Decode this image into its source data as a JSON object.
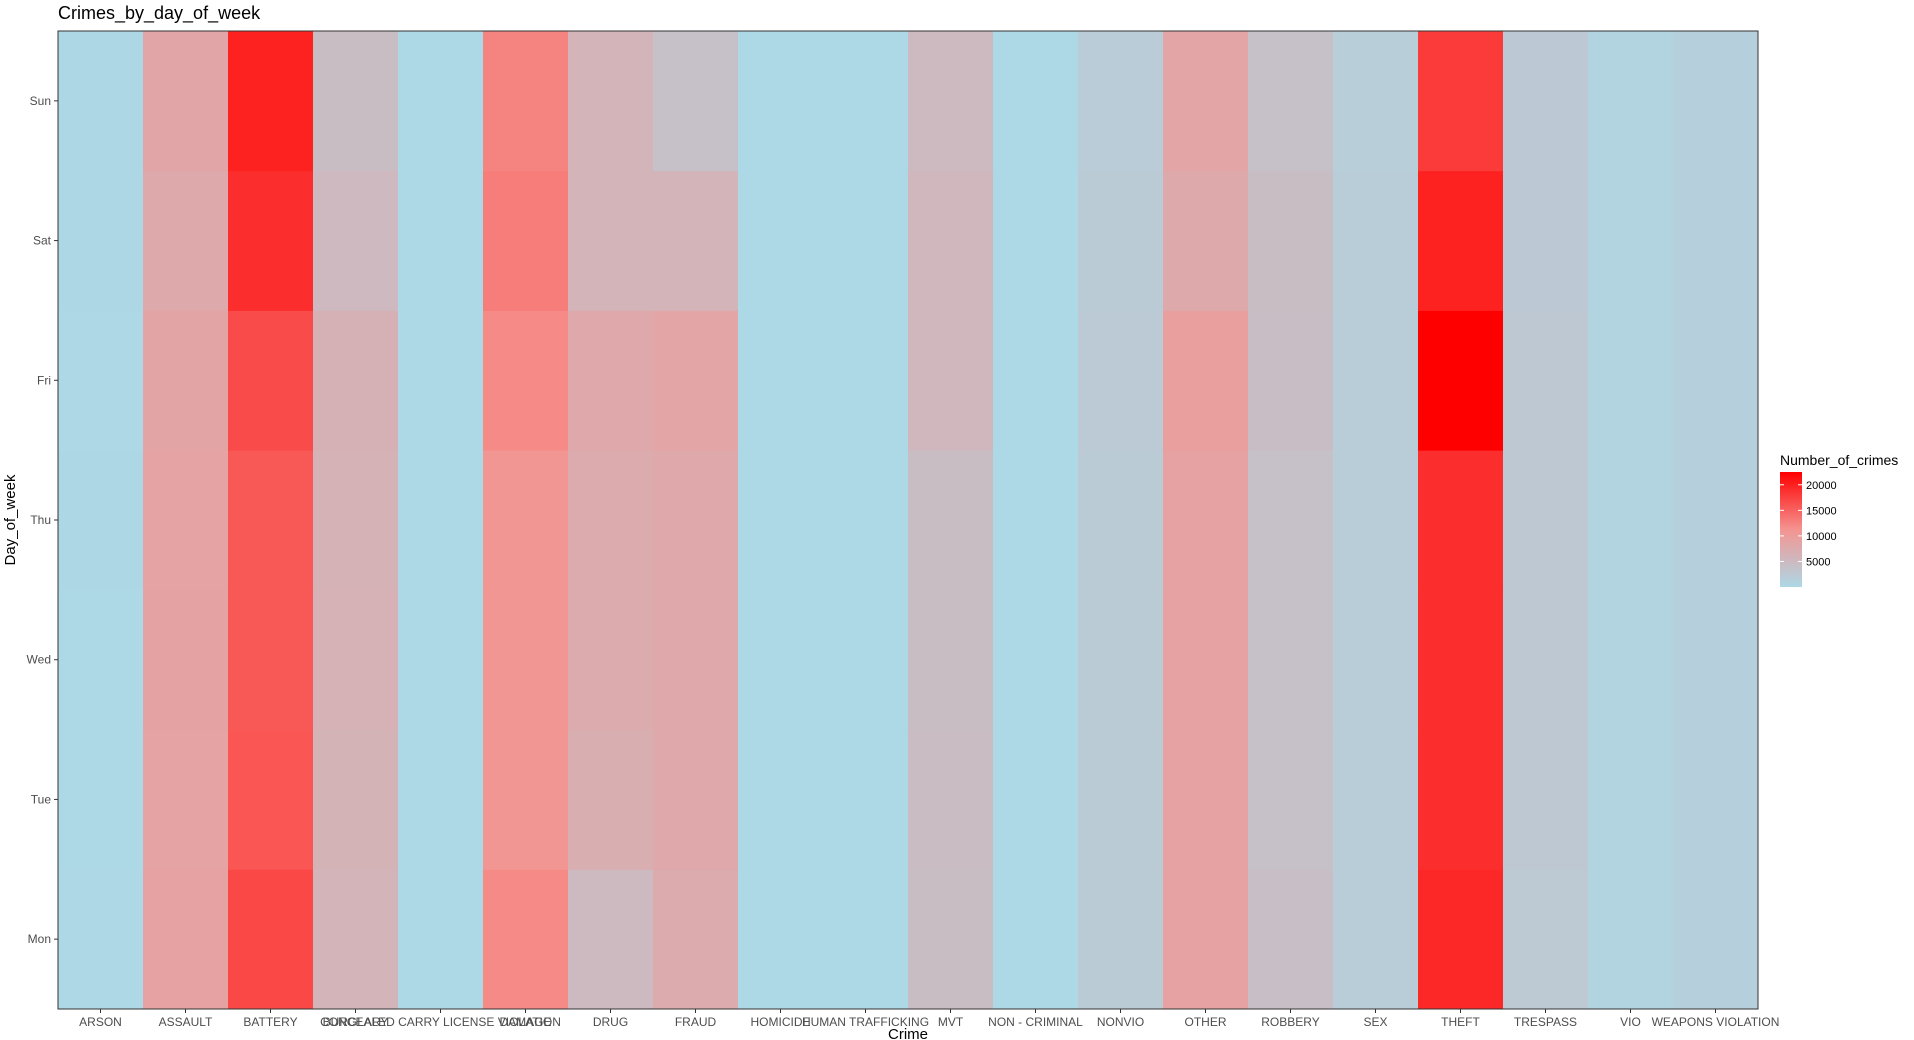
{
  "chart_data": {
    "type": "heatmap",
    "title": "Crimes_by_day_of_week",
    "xlabel": "Crime",
    "ylabel": "Day_of_week",
    "x_categories": [
      "ARSON",
      "ASSAULT",
      "BATTERY",
      "BURGLARY",
      "CONCEALED CARRY LICENSE VIOLATION",
      "DAMAGE",
      "DRUG",
      "FRAUD",
      "HOMICIDE",
      "HUMAN TRAFFICKING",
      "MVT",
      "NON - CRIMINAL",
      "NONVIO",
      "OTHER",
      "ROBBERY",
      "SEX",
      "THEFT",
      "TRESPASS",
      "VIO",
      "WEAPONS VIOLATION"
    ],
    "x_tick_labels": [
      "ARSON",
      "ASSAULT",
      "BATTERY",
      "BURGLARY",
      "CONCEALED CARRY LICENSE VIOLATION",
      "DAMAGE",
      "DRUG",
      "FRAUD",
      "HOMICIDE",
      "HUMAN TRAFFICKING",
      "MVT",
      "NON - CRIMINAL",
      "NONVIO",
      "OTHER",
      "ROBBERY",
      "SEX",
      "THEFT",
      "TRESPASS",
      "VIO",
      "WEAPONS VIOLATION"
    ],
    "y_categories": [
      "Mon",
      "Tue",
      "Wed",
      "Thu",
      "Fri",
      "Sat",
      "Sun"
    ],
    "values": [
      [
        80,
        9000,
        17000,
        6000,
        20,
        12000,
        5000,
        7500,
        60,
        5,
        4500,
        30,
        2200,
        9000,
        4200,
        1800,
        19500,
        2500,
        800,
        1300
      ],
      [
        75,
        8800,
        16000,
        6200,
        25,
        11000,
        7000,
        8000,
        55,
        5,
        4600,
        35,
        2100,
        9000,
        4000,
        1800,
        19000,
        2600,
        800,
        1300
      ],
      [
        70,
        8900,
        15800,
        6500,
        20,
        11000,
        7500,
        8000,
        60,
        5,
        4500,
        30,
        2200,
        9000,
        4000,
        1800,
        19000,
        2700,
        800,
        1300
      ],
      [
        85,
        8800,
        15800,
        6300,
        20,
        11000,
        7500,
        8000,
        60,
        5,
        4500,
        30,
        2200,
        9000,
        4000,
        1800,
        19000,
        2700,
        800,
        1300
      ],
      [
        80,
        8600,
        16800,
        6400,
        25,
        12000,
        8000,
        8500,
        70,
        5,
        5400,
        35,
        2300,
        9500,
        4400,
        1800,
        22500,
        2600,
        800,
        1300
      ],
      [
        90,
        7800,
        19000,
        5100,
        20,
        13000,
        6000,
        6000,
        75,
        5,
        5400,
        40,
        2100,
        7800,
        4500,
        1800,
        20000,
        2400,
        800,
        1300
      ],
      [
        85,
        8400,
        20000,
        4500,
        20,
        12500,
        6000,
        4000,
        70,
        5,
        5000,
        40,
        2000,
        8500,
        4000,
        1700,
        18000,
        2400,
        800,
        1300
      ]
    ],
    "legend": {
      "title": "Number_of_crimes",
      "position": "right",
      "labels": [
        "20000",
        "15000",
        "10000",
        "5000"
      ],
      "min": 0,
      "max": 22500,
      "low_color": "#add8e6",
      "high_color": "#ff0000"
    },
    "grid": false
  }
}
